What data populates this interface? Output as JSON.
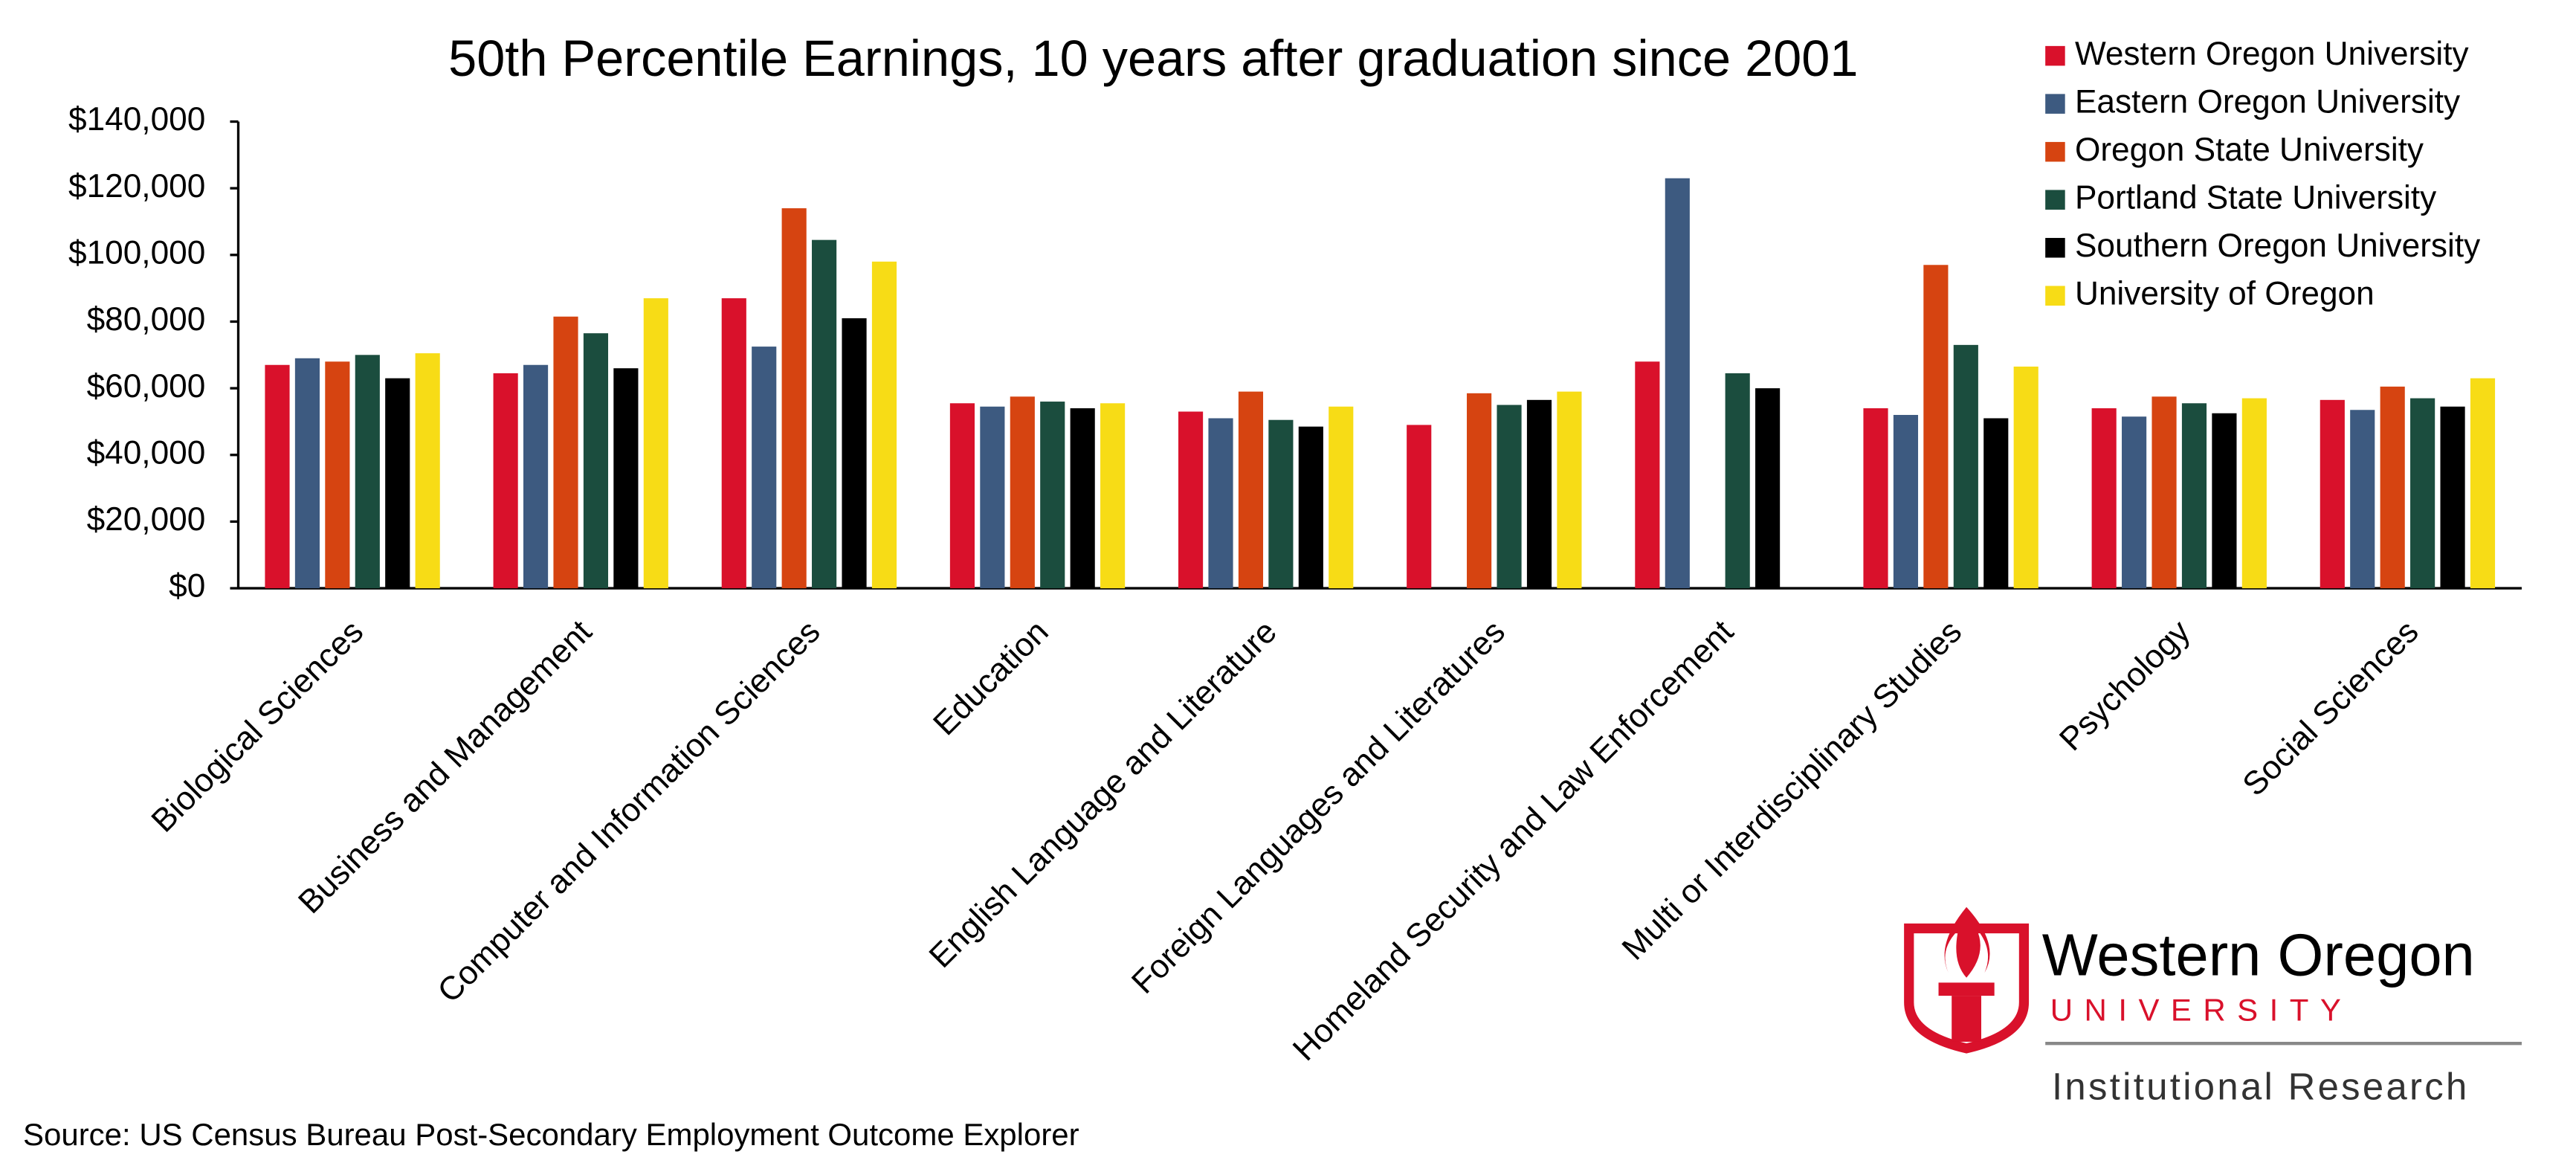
{
  "chart_data": {
    "type": "bar",
    "title": "50th Percentile Earnings, 10 years after graduation since 2001",
    "categories": [
      "Biological Sciences",
      "Business and Management",
      "Computer and Information Sciences",
      "Education",
      "English Language and Literature",
      "Foreign Languages and Literatures",
      "Homeland Security and Law Enforcement",
      "Multi or Interdisciplinary Studies",
      "Psychology",
      "Social Sciences"
    ],
    "series": [
      {
        "name": "Western Oregon University",
        "color": "#d9112b",
        "values": [
          67000,
          64500,
          87000,
          55500,
          53000,
          49000,
          68000,
          54000,
          54000,
          56500
        ]
      },
      {
        "name": "Eastern Oregon University",
        "color": "#3d5a80",
        "values": [
          69000,
          67000,
          72500,
          54500,
          51000,
          null,
          123000,
          52000,
          51500,
          53500
        ]
      },
      {
        "name": "Oregon State University",
        "color": "#d64411",
        "values": [
          68000,
          81500,
          114000,
          57500,
          59000,
          58500,
          null,
          97000,
          57500,
          60500
        ]
      },
      {
        "name": "Portland State University",
        "color": "#1b4d3e",
        "values": [
          70000,
          76500,
          104500,
          56000,
          50500,
          55000,
          64500,
          73000,
          55500,
          57000
        ]
      },
      {
        "name": "Southern Oregon University",
        "color": "#000000",
        "values": [
          63000,
          66000,
          81000,
          54000,
          48500,
          56500,
          60000,
          51000,
          52500,
          54500
        ]
      },
      {
        "name": "University of Oregon",
        "color": "#f7dc16",
        "values": [
          70500,
          87000,
          98000,
          55500,
          54500,
          59000,
          null,
          66500,
          57000,
          63000
        ]
      }
    ],
    "ylim": [
      0,
      140000
    ],
    "yticks": [
      {
        "value": 0,
        "label": "$0"
      },
      {
        "value": 20000,
        "label": "$20,000"
      },
      {
        "value": 40000,
        "label": "$40,000"
      },
      {
        "value": 60000,
        "label": "$60,000"
      },
      {
        "value": 80000,
        "label": "$80,000"
      },
      {
        "value": 100000,
        "label": "$100,000"
      },
      {
        "value": 120000,
        "label": "$120,000"
      },
      {
        "value": 140000,
        "label": "$140,000"
      }
    ],
    "legend": "top-right",
    "source": "Source: US Census Bureau Post-Secondary Employment Outcome Explorer"
  },
  "logo": {
    "name": "Western Oregon",
    "sub": "UNIVERSITY",
    "unit": "Institutional Research"
  }
}
